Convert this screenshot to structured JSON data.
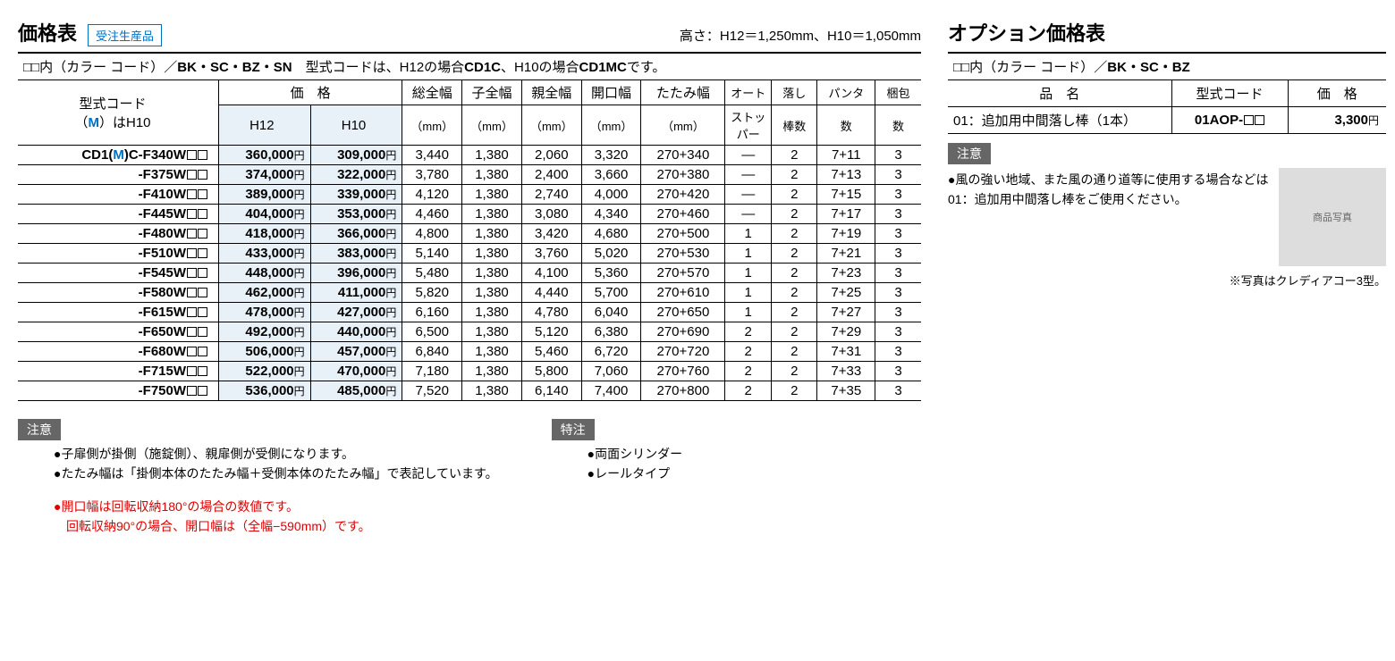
{
  "left": {
    "title": "価格表",
    "order_badge": "受注生産品",
    "height_note": "高さ：H12＝1,250mm、H10＝1,050mm",
    "color_line_prefix": "□□内（カラー コード）／",
    "color_codes": "BK・SC・BZ・SN",
    "model_note_1": "　型式コードは、H12の場合",
    "model_note_bold1": "CD1C",
    "model_note_2": "、H10の場合",
    "model_note_bold2": "CD1MC",
    "model_note_3": "です。",
    "head": {
      "model1": "型式コード",
      "model2_pre": "（",
      "model2_m": "M",
      "model2_post": "）はH10",
      "price": "価　格",
      "h12": "H12",
      "h10": "H10",
      "total_w": "総全幅",
      "child_w": "子全幅",
      "parent_w": "親全幅",
      "open_w": "開口幅",
      "fold_w": "たたみ幅",
      "auto": "オート",
      "auto2": "ストッパー",
      "bar": "落し",
      "bar2": "棒数",
      "panta": "パンタ",
      "panta2": "数",
      "pack": "梱包",
      "pack2": "数",
      "mm": "（mm）"
    },
    "first_model_prefix": "CD1(",
    "first_model_m": "M",
    "first_model_post": ")C-F340W",
    "rows": [
      {
        "model": "-F340W",
        "h12": "360,000",
        "h10": "309,000",
        "tw": "3,440",
        "cw": "1,380",
        "pw": "2,060",
        "ow": "3,320",
        "fw": "270+340",
        "auto": "—",
        "bar": "2",
        "panta": "7+11",
        "pack": "3",
        "first": true
      },
      {
        "model": "-F375W",
        "h12": "374,000",
        "h10": "322,000",
        "tw": "3,780",
        "cw": "1,380",
        "pw": "2,400",
        "ow": "3,660",
        "fw": "270+380",
        "auto": "—",
        "bar": "2",
        "panta": "7+13",
        "pack": "3"
      },
      {
        "model": "-F410W",
        "h12": "389,000",
        "h10": "339,000",
        "tw": "4,120",
        "cw": "1,380",
        "pw": "2,740",
        "ow": "4,000",
        "fw": "270+420",
        "auto": "—",
        "bar": "2",
        "panta": "7+15",
        "pack": "3"
      },
      {
        "model": "-F445W",
        "h12": "404,000",
        "h10": "353,000",
        "tw": "4,460",
        "cw": "1,380",
        "pw": "3,080",
        "ow": "4,340",
        "fw": "270+460",
        "auto": "—",
        "bar": "2",
        "panta": "7+17",
        "pack": "3"
      },
      {
        "model": "-F480W",
        "h12": "418,000",
        "h10": "366,000",
        "tw": "4,800",
        "cw": "1,380",
        "pw": "3,420",
        "ow": "4,680",
        "fw": "270+500",
        "auto": "1",
        "bar": "2",
        "panta": "7+19",
        "pack": "3"
      },
      {
        "model": "-F510W",
        "h12": "433,000",
        "h10": "383,000",
        "tw": "5,140",
        "cw": "1,380",
        "pw": "3,760",
        "ow": "5,020",
        "fw": "270+530",
        "auto": "1",
        "bar": "2",
        "panta": "7+21",
        "pack": "3"
      },
      {
        "model": "-F545W",
        "h12": "448,000",
        "h10": "396,000",
        "tw": "5,480",
        "cw": "1,380",
        "pw": "4,100",
        "ow": "5,360",
        "fw": "270+570",
        "auto": "1",
        "bar": "2",
        "panta": "7+23",
        "pack": "3"
      },
      {
        "model": "-F580W",
        "h12": "462,000",
        "h10": "411,000",
        "tw": "5,820",
        "cw": "1,380",
        "pw": "4,440",
        "ow": "5,700",
        "fw": "270+610",
        "auto": "1",
        "bar": "2",
        "panta": "7+25",
        "pack": "3"
      },
      {
        "model": "-F615W",
        "h12": "478,000",
        "h10": "427,000",
        "tw": "6,160",
        "cw": "1,380",
        "pw": "4,780",
        "ow": "6,040",
        "fw": "270+650",
        "auto": "1",
        "bar": "2",
        "panta": "7+27",
        "pack": "3"
      },
      {
        "model": "-F650W",
        "h12": "492,000",
        "h10": "440,000",
        "tw": "6,500",
        "cw": "1,380",
        "pw": "5,120",
        "ow": "6,380",
        "fw": "270+690",
        "auto": "2",
        "bar": "2",
        "panta": "7+29",
        "pack": "3"
      },
      {
        "model": "-F680W",
        "h12": "506,000",
        "h10": "457,000",
        "tw": "6,840",
        "cw": "1,380",
        "pw": "5,460",
        "ow": "6,720",
        "fw": "270+720",
        "auto": "2",
        "bar": "2",
        "panta": "7+31",
        "pack": "3"
      },
      {
        "model": "-F715W",
        "h12": "522,000",
        "h10": "470,000",
        "tw": "7,180",
        "cw": "1,380",
        "pw": "5,800",
        "ow": "7,060",
        "fw": "270+760",
        "auto": "2",
        "bar": "2",
        "panta": "7+33",
        "pack": "3"
      },
      {
        "model": "-F750W",
        "h12": "536,000",
        "h10": "485,000",
        "tw": "7,520",
        "cw": "1,380",
        "pw": "6,140",
        "ow": "7,400",
        "fw": "270+800",
        "auto": "2",
        "bar": "2",
        "panta": "7+35",
        "pack": "3"
      }
    ],
    "notice_badge": "注意",
    "notes_left": [
      "●子扉側が掛側（施錠側）、親扉側が受側になります。",
      "●たたみ幅は「掛側本体のたたみ幅＋受側本体のたたみ幅」で表記しています。"
    ],
    "notes_red": [
      "●開口幅は回転収納180°の場合の数値です。",
      "　回転収納90°の場合、開口幅は（全幅−590mm）です。"
    ],
    "special_badge": "特注",
    "notes_special": [
      "●両面シリンダー",
      "●レールタイプ"
    ]
  },
  "right": {
    "title": "オプション価格表",
    "color_line_prefix": "□□内（カラー コード）／",
    "color_codes": "BK・SC・BZ",
    "head_name": "品　名",
    "head_model": "型式コード",
    "head_price": "価　格",
    "row_name": "01：追加用中間落し棒（1本）",
    "row_model": "01AOP-",
    "row_price": "3,300",
    "notice_badge": "注意",
    "note": "●風の強い地域、また風の通り道等に使用する場合などは01：追加用中間落し棒をご使用ください。",
    "caption": "※写真はクレディアコー3型。",
    "img_alt": "商品写真"
  },
  "yen": "円"
}
